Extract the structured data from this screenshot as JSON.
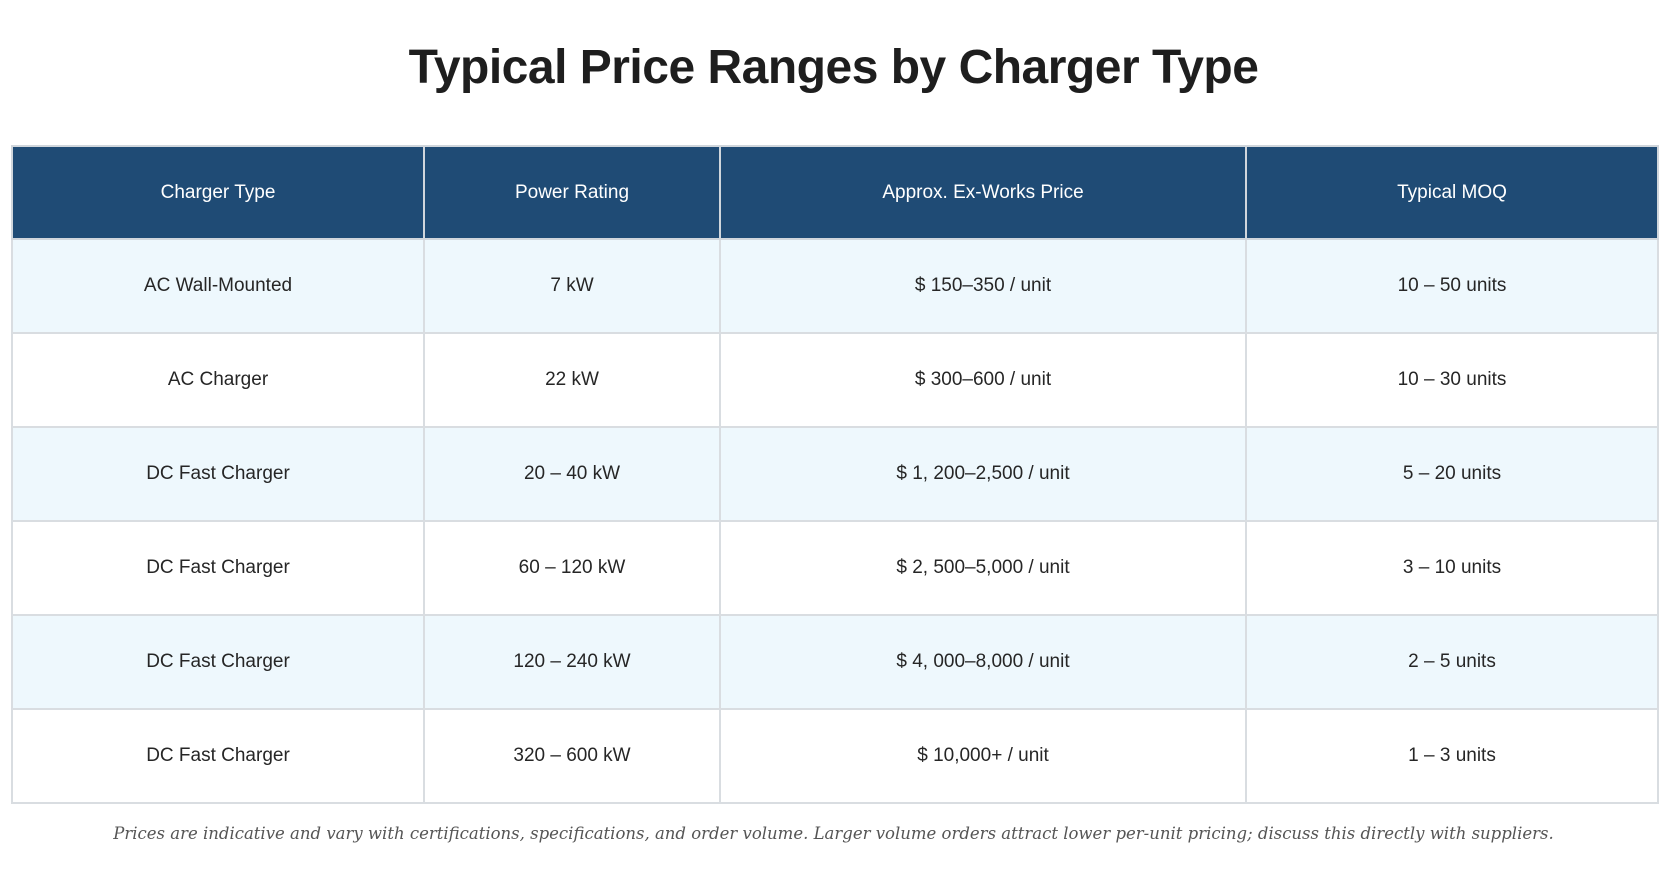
{
  "title": "Typical Price Ranges by Charger Type",
  "table": {
    "headers": [
      "Charger Type",
      "Power Rating",
      "Approx. Ex-Works Price",
      "Typical MOQ"
    ],
    "rows": [
      [
        "AC Wall-Mounted",
        "7 kW",
        "$ 150–350 / unit",
        "10 – 50 units"
      ],
      [
        "AC Charger",
        "22 kW",
        "$ 300–600 / unit",
        "10 – 30 units"
      ],
      [
        "DC Fast Charger",
        "20 – 40 kW",
        "$ 1, 200–2,500 / unit",
        "5 – 20 units"
      ],
      [
        "DC Fast Charger",
        "60 – 120 kW",
        "$ 2, 500–5,000 / unit",
        "3 – 10 units"
      ],
      [
        "DC Fast Charger",
        "120 – 240 kW",
        "$ 4, 000–8,000 / unit",
        "2 – 5 units"
      ],
      [
        "DC Fast Charger",
        "320 – 600 kW",
        "$ 10,000+ / unit",
        "1 – 3 units"
      ]
    ]
  },
  "footnote": "Prices are indicative and vary with certifications, specifications, and order volume. Larger volume orders attract lower per-unit pricing; discuss this directly with suppliers.",
  "colors": {
    "header_background": "#1f4b75",
    "header_text": "#ffffff",
    "stripe_row": "#eef8fd",
    "plain_row": "#ffffff",
    "grid_lines": "#d9dde1"
  }
}
